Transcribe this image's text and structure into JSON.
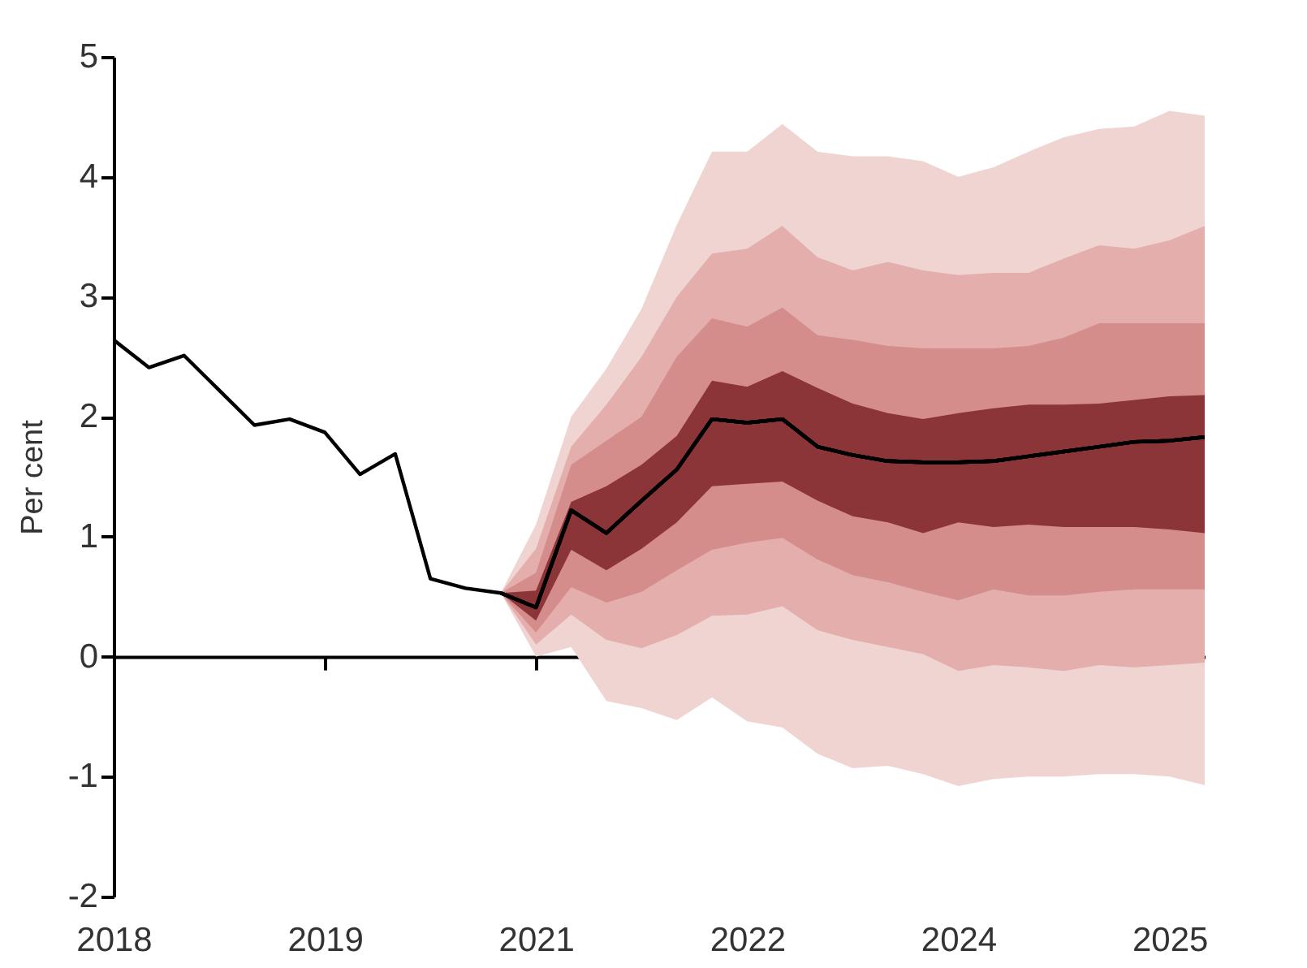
{
  "chart_data": {
    "type": "line",
    "ylabel": "Per cent",
    "series": [
      {
        "color": "#000000",
        "colors": [
          "#f0d4d2",
          "#f0d4d2",
          "#f0d4d2",
          "#f0d4d2",
          "#f0d4d2",
          "#f0d4d2",
          "#f0d4d2",
          "#f0d4d2",
          "#f0d4d2",
          "#f0d4d2",
          "#f0d4d2",
          "#f0d4d2",
          "#f0d4d2",
          "#f0d4d2",
          "#f0d4d2",
          "#f0d4d2",
          "#f0d4d2",
          "#f0d4d2",
          "#f0d4d2",
          "#f0d4d2",
          "#f0d4d2"
        ],
        "x": [
          2020.75,
          2021.0,
          2021.25,
          2021.5,
          2021.75,
          2022.0,
          2022.25,
          2022.5,
          2022.75,
          2023.0,
          2023.25,
          2023.5,
          2023.75,
          2024.0,
          2024.25,
          2024.5,
          2024.75,
          2025.0,
          2025.25,
          2025.5,
          2025.75
        ],
        "values": [
          0.53,
          0.41,
          1.22,
          1.03,
          1.3,
          1.56,
          1.98,
          1.95,
          1.98,
          1.75,
          1.68,
          1.63,
          1.62,
          1.62,
          1.63,
          1.67,
          1.71,
          1.75,
          1.79,
          1.8,
          1.83
        ],
        "lower": [
          0.53,
          0.0,
          0.08,
          -0.37,
          -0.43,
          -0.53,
          -0.34,
          -0.54,
          -0.59,
          -0.81,
          -0.93,
          -0.91,
          -0.98,
          -1.08,
          -1.02,
          -1.0,
          -1.0,
          -0.98,
          -0.98,
          -1.0,
          -1.07
        ],
        "upper": [
          0.53,
          1.1,
          2.0,
          2.4,
          2.9,
          3.6,
          4.21,
          4.21,
          4.44,
          4.21,
          4.17,
          4.17,
          4.13,
          4.0,
          4.08,
          4.21,
          4.33,
          4.4,
          4.42,
          4.55,
          4.51
        ]
      },
      {
        "color": "#000000",
        "colors": [
          "#e3aeac",
          "#e3aeac",
          "#e3aeac",
          "#e3aeac",
          "#e3aeac",
          "#e3aeac",
          "#e3aeac",
          "#e3aeac",
          "#e3aeac",
          "#e3aeac",
          "#e3aeac",
          "#e3aeac",
          "#e3aeac",
          "#e3aeac",
          "#e3aeac",
          "#e3aeac",
          "#e3aeac",
          "#e3aeac",
          "#e3aeac",
          "#e3aeac",
          "#e3aeac"
        ],
        "x": [
          2020.75,
          2021.0,
          2021.25,
          2021.5,
          2021.75,
          2022.0,
          2022.25,
          2022.5,
          2022.75,
          2023.0,
          2023.25,
          2023.5,
          2023.75,
          2024.0,
          2024.25,
          2024.5,
          2024.75,
          2025.0,
          2025.25,
          2025.5,
          2025.75
        ],
        "values": [
          0.53,
          0.41,
          1.22,
          1.03,
          1.3,
          1.56,
          1.98,
          1.95,
          1.98,
          1.75,
          1.68,
          1.63,
          1.62,
          1.62,
          1.63,
          1.67,
          1.71,
          1.75,
          1.79,
          1.8,
          1.83
        ],
        "lower": [
          0.53,
          0.1,
          0.35,
          0.14,
          0.07,
          0.18,
          0.34,
          0.35,
          0.42,
          0.22,
          0.14,
          0.08,
          0.02,
          -0.12,
          -0.07,
          -0.09,
          -0.12,
          -0.07,
          -0.09,
          -0.07,
          -0.05
        ],
        "upper": [
          0.53,
          0.9,
          1.75,
          2.1,
          2.5,
          3.0,
          3.36,
          3.4,
          3.59,
          3.33,
          3.22,
          3.29,
          3.22,
          3.18,
          3.2,
          3.2,
          3.32,
          3.43,
          3.4,
          3.47,
          3.59
        ]
      },
      {
        "color": "#000000",
        "colors": [
          "#d48d8a",
          "#d48d8a",
          "#d48d8a",
          "#d48d8a",
          "#d48d8a",
          "#d48d8a",
          "#d48d8a",
          "#d48d8a",
          "#d48d8a",
          "#d48d8a",
          "#d48d8a",
          "#d48d8a",
          "#d48d8a",
          "#d48d8a",
          "#d48d8a",
          "#d48d8a",
          "#d48d8a",
          "#d48d8a",
          "#d48d8a",
          "#d48d8a",
          "#d48d8a"
        ],
        "x": [
          2020.75,
          2021.0,
          2021.25,
          2021.5,
          2021.75,
          2022.0,
          2022.25,
          2022.5,
          2022.75,
          2023.0,
          2023.25,
          2023.5,
          2023.75,
          2024.0,
          2024.25,
          2024.5,
          2024.75,
          2025.0,
          2025.25,
          2025.5,
          2025.75
        ],
        "values": [
          0.53,
          0.41,
          1.22,
          1.03,
          1.3,
          1.56,
          1.98,
          1.95,
          1.98,
          1.75,
          1.68,
          1.63,
          1.62,
          1.62,
          1.63,
          1.67,
          1.71,
          1.75,
          1.79,
          1.8,
          1.83
        ],
        "lower": [
          0.53,
          0.2,
          0.58,
          0.45,
          0.54,
          0.72,
          0.89,
          0.95,
          0.99,
          0.81,
          0.68,
          0.62,
          0.54,
          0.47,
          0.56,
          0.51,
          0.51,
          0.54,
          0.56,
          0.56,
          0.56
        ],
        "upper": [
          0.53,
          0.7,
          1.6,
          1.8,
          2.0,
          2.5,
          2.82,
          2.75,
          2.91,
          2.68,
          2.64,
          2.59,
          2.57,
          2.57,
          2.57,
          2.59,
          2.66,
          2.78,
          2.78,
          2.78,
          2.78
        ]
      },
      {
        "color": "#000000",
        "colors": [
          null,
          null,
          null,
          null,
          null,
          null,
          null,
          null,
          null,
          null,
          null,
          "#8c3538",
          "#8c3538",
          "#8c3538",
          "#8c3538",
          "#8c3538",
          "#8c3538",
          "#8c3538",
          "#8c3538",
          "#8c3538",
          "#8c3538",
          "#8c3538",
          "#8c3538",
          "#8c3538",
          "#8c3538",
          "#8c3538",
          "#8c3538",
          "#8c3538",
          "#8c3538",
          "#8c3538",
          "#8c3538",
          "#8c3538"
        ],
        "x": [
          2018.0,
          2018.25,
          2018.5,
          2018.75,
          2019.0,
          2019.25,
          2019.5,
          2019.75,
          2020.0,
          2020.25,
          2020.5,
          2020.75,
          2021.0,
          2021.25,
          2021.5,
          2021.75,
          2022.0,
          2022.25,
          2022.5,
          2022.75,
          2023.0,
          2023.25,
          2023.5,
          2023.75,
          2024.0,
          2024.25,
          2024.5,
          2024.75,
          2025.0,
          2025.25,
          2025.5,
          2025.75
        ],
        "values": [
          2.64,
          2.41,
          2.51,
          2.22,
          1.93,
          1.98,
          1.87,
          1.52,
          1.69,
          0.65,
          0.57,
          0.53,
          0.41,
          1.22,
          1.03,
          1.3,
          1.56,
          1.98,
          1.95,
          1.98,
          1.75,
          1.68,
          1.63,
          1.62,
          1.62,
          1.63,
          1.67,
          1.71,
          1.75,
          1.79,
          1.8,
          1.83
        ],
        "lower": [
          null,
          null,
          null,
          null,
          null,
          null,
          null,
          null,
          null,
          null,
          null,
          0.53,
          0.3,
          0.89,
          0.72,
          0.9,
          1.12,
          1.42,
          1.44,
          1.46,
          1.3,
          1.17,
          1.12,
          1.03,
          1.12,
          1.08,
          1.1,
          1.08,
          1.08,
          1.08,
          1.06,
          1.03
        ],
        "upper": [
          null,
          null,
          null,
          null,
          null,
          null,
          null,
          null,
          null,
          null,
          null,
          0.53,
          0.55,
          1.29,
          1.42,
          1.6,
          1.84,
          2.3,
          2.25,
          2.38,
          2.24,
          2.11,
          2.03,
          1.98,
          2.03,
          2.07,
          2.1,
          2.1,
          2.11,
          2.14,
          2.17,
          2.18
        ]
      }
    ],
    "xlim": [
      2018,
      2025.75
    ],
    "xticks": [
      {
        "value": 2018,
        "label": "2018"
      },
      {
        "value": 2019.5,
        "label": "2019"
      },
      {
        "value": 2021,
        "label": "2021"
      },
      {
        "value": 2022.5,
        "label": "2022"
      },
      {
        "value": 2024,
        "label": "2024"
      },
      {
        "value": 2025.5,
        "label": "2025"
      }
    ],
    "ylim": [
      -2,
      5
    ],
    "yticks": [
      -2,
      -1,
      0,
      1,
      2,
      3,
      4,
      5
    ],
    "line_style": "solid"
  }
}
